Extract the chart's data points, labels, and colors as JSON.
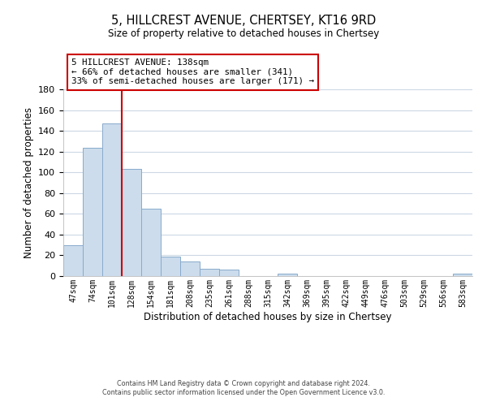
{
  "title": "5, HILLCREST AVENUE, CHERTSEY, KT16 9RD",
  "subtitle": "Size of property relative to detached houses in Chertsey",
  "xlabel": "Distribution of detached houses by size in Chertsey",
  "ylabel": "Number of detached properties",
  "bin_labels": [
    "47sqm",
    "74sqm",
    "101sqm",
    "128sqm",
    "154sqm",
    "181sqm",
    "208sqm",
    "235sqm",
    "261sqm",
    "288sqm",
    "315sqm",
    "342sqm",
    "369sqm",
    "395sqm",
    "422sqm",
    "449sqm",
    "476sqm",
    "503sqm",
    "529sqm",
    "556sqm",
    "583sqm"
  ],
  "bar_values": [
    30,
    124,
    147,
    103,
    65,
    19,
    14,
    7,
    6,
    0,
    0,
    2,
    0,
    0,
    0,
    0,
    0,
    0,
    0,
    0,
    2
  ],
  "bar_color": "#ccdcec",
  "bar_edgecolor": "#88aacc",
  "vline_color": "#cc0000",
  "ylim": [
    0,
    180
  ],
  "yticks": [
    0,
    20,
    40,
    60,
    80,
    100,
    120,
    140,
    160,
    180
  ],
  "annotation_title": "5 HILLCREST AVENUE: 138sqm",
  "annotation_line1": "← 66% of detached houses are smaller (341)",
  "annotation_line2": "33% of semi-detached houses are larger (171) →",
  "footer1": "Contains HM Land Registry data © Crown copyright and database right 2024.",
  "footer2": "Contains public sector information licensed under the Open Government Licence v3.0.",
  "background_color": "#ffffff",
  "grid_color": "#ccd8e4"
}
